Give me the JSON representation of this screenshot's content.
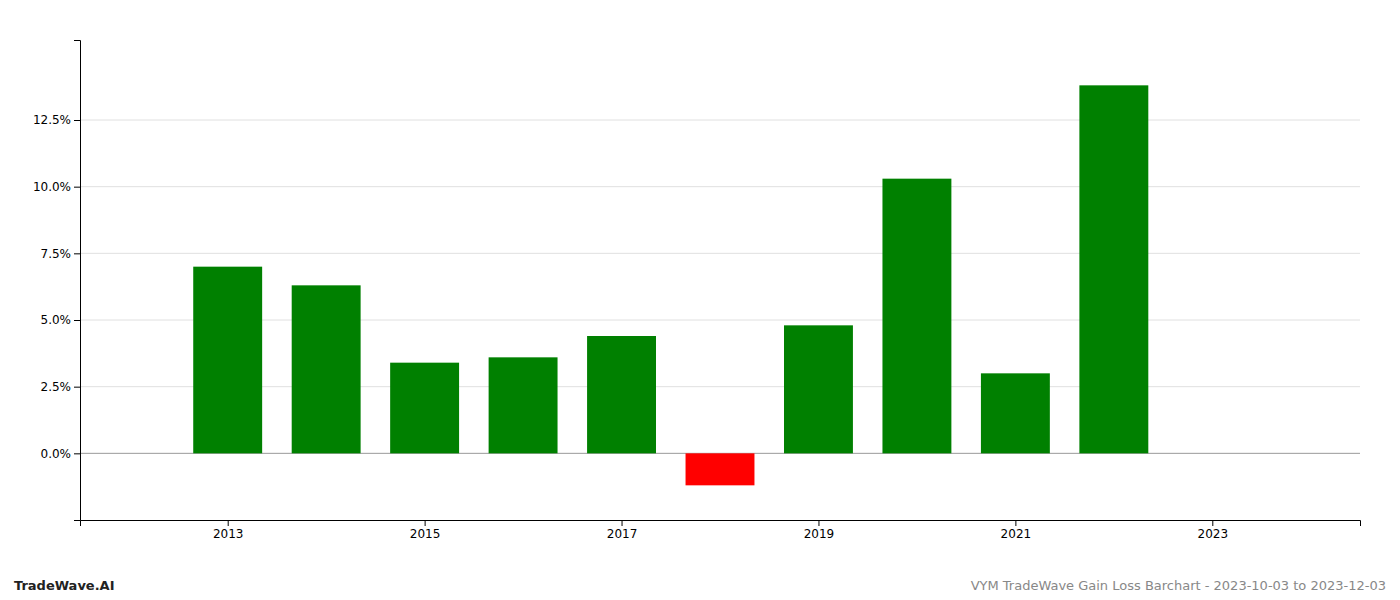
{
  "chart_data": {
    "type": "bar",
    "x": [
      2013,
      2014,
      2015,
      2016,
      2017,
      2018,
      2019,
      2020,
      2021,
      2022
    ],
    "values": [
      0.07,
      0.063,
      0.034,
      0.036,
      0.044,
      -0.012,
      0.048,
      0.103,
      0.03,
      0.138
    ],
    "colors": [
      "#008000",
      "#008000",
      "#008000",
      "#008000",
      "#008000",
      "#ff0000",
      "#008000",
      "#008000",
      "#008000",
      "#008000"
    ],
    "xlim": [
      2011.5,
      2024.5
    ],
    "xticks": [
      2013,
      2015,
      2017,
      2019,
      2021,
      2023
    ],
    "ylim": [
      -0.025,
      0.155
    ],
    "yticks": [
      {
        "value": 0.0,
        "label": "0.0%"
      },
      {
        "value": 0.025,
        "label": "2.5%"
      },
      {
        "value": 0.05,
        "label": "5.0%"
      },
      {
        "value": 0.075,
        "label": "7.5%"
      },
      {
        "value": 0.1,
        "label": "10.0%"
      },
      {
        "value": 0.125,
        "label": "12.5%"
      }
    ],
    "grid": true,
    "annotations": [
      "TradeWave.AI",
      "VYM TradeWave Gain Loss Barchart - 2023-10-03 to 2023-12-03"
    ]
  }
}
